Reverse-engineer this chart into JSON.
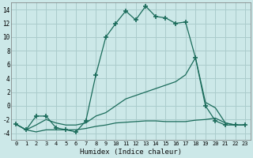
{
  "xlabel": "Humidex (Indice chaleur)",
  "bg_color": "#cce8e8",
  "grid_color": "#aacccc",
  "line_color": "#1a6b5a",
  "xlim": [
    -0.5,
    23.5
  ],
  "ylim": [
    -5,
    15
  ],
  "yticks": [
    -4,
    -2,
    0,
    2,
    4,
    6,
    8,
    10,
    12,
    14
  ],
  "xticks": [
    0,
    1,
    2,
    3,
    4,
    5,
    6,
    7,
    8,
    9,
    10,
    11,
    12,
    13,
    14,
    15,
    16,
    17,
    18,
    19,
    20,
    21,
    22,
    23
  ],
  "line1_x": [
    0,
    1,
    2,
    3,
    4,
    5,
    6,
    7,
    8,
    9,
    10,
    11,
    12,
    13,
    14,
    15,
    16,
    17,
    18,
    19,
    20,
    21,
    22,
    23
  ],
  "line1_y": [
    -2.7,
    -3.5,
    -3.8,
    -3.5,
    -3.5,
    -3.5,
    -3.5,
    -3.3,
    -3.0,
    -2.8,
    -2.5,
    -2.4,
    -2.3,
    -2.2,
    -2.2,
    -2.3,
    -2.3,
    -2.3,
    -2.1,
    -2.0,
    -1.8,
    -2.5,
    -2.8,
    -2.8
  ],
  "line2_x": [
    0,
    1,
    2,
    3,
    4,
    5,
    6,
    7,
    8,
    9,
    10,
    11,
    12,
    13,
    14,
    15,
    16,
    17,
    18,
    19,
    20,
    21,
    22,
    23
  ],
  "line2_y": [
    -2.7,
    -3.5,
    -1.5,
    -1.5,
    -3.2,
    -3.5,
    -3.8,
    -2.2,
    4.5,
    10.0,
    12.0,
    13.8,
    12.5,
    14.5,
    13.0,
    12.8,
    12.0,
    12.2,
    7.0,
    0.0,
    -2.2,
    -2.8,
    -2.8,
    -2.8
  ],
  "line3_x": [
    0,
    1,
    2,
    3,
    4,
    5,
    6,
    7,
    8,
    9,
    10,
    11,
    12,
    13,
    14,
    15,
    16,
    17,
    18,
    19,
    20,
    21,
    22,
    23
  ],
  "line3_y": [
    -2.7,
    -3.5,
    -2.8,
    -2.0,
    -2.5,
    -2.8,
    -2.8,
    -2.5,
    -1.5,
    -1.0,
    0.0,
    1.0,
    1.5,
    2.0,
    2.5,
    3.0,
    3.5,
    4.5,
    7.0,
    0.5,
    -0.3,
    -2.5,
    -2.8,
    -2.8
  ]
}
